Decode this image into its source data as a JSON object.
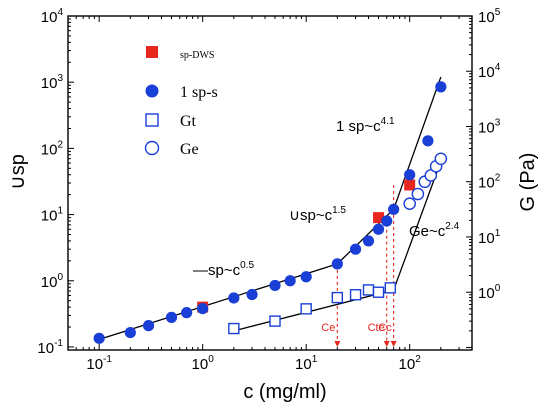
{
  "chart_data": {
    "type": "scatter",
    "xlabel": "c (mg/ml)",
    "ylabel_left": "∪sp",
    "ylabel_right": "G (Pa)",
    "x_scale": "log",
    "y_left_scale": "log",
    "y_right_scale": "log",
    "xlim": [
      0.05,
      400
    ],
    "ylim_left": [
      0.09,
      10000
    ],
    "ylim_right": [
      0.09,
      100000
    ],
    "x_ticks": [
      {
        "base": "10",
        "exp": "-1"
      },
      {
        "base": "10",
        "exp": "0"
      },
      {
        "base": "10",
        "exp": "1"
      },
      {
        "base": "10",
        "exp": "2"
      }
    ],
    "y_left_ticks": [
      {
        "base": "10",
        "exp": "-1"
      },
      {
        "base": "10",
        "exp": "0"
      },
      {
        "base": "10",
        "exp": "1"
      },
      {
        "base": "10",
        "exp": "2"
      },
      {
        "base": "10",
        "exp": "3"
      },
      {
        "base": "10",
        "exp": "4"
      }
    ],
    "y_right_ticks": [
      {
        "base": "10",
        "exp": "0"
      },
      {
        "base": "10",
        "exp": "1"
      },
      {
        "base": "10",
        "exp": "2"
      },
      {
        "base": "10",
        "exp": "3"
      },
      {
        "base": "10",
        "exp": "4"
      },
      {
        "base": "10",
        "exp": "5"
      }
    ],
    "series": [
      {
        "name": "sp-DWS",
        "marker": "filled-square",
        "color": "#e8281e",
        "axis": "left",
        "x": [
          1.0,
          50,
          100
        ],
        "y": [
          0.4,
          9.0,
          28
        ]
      },
      {
        "name": "1 sp-s",
        "marker": "filled-circle",
        "color": "#1a3fd6",
        "axis": "left",
        "x": [
          0.1,
          0.2,
          0.3,
          0.5,
          0.7,
          1,
          2,
          3,
          5,
          7,
          10,
          20,
          30,
          40,
          50,
          60,
          70,
          100,
          150,
          200
        ],
        "y": [
          0.135,
          0.165,
          0.21,
          0.28,
          0.33,
          0.38,
          0.55,
          0.62,
          0.85,
          1.0,
          1.15,
          1.8,
          3.0,
          4.0,
          6.0,
          8.0,
          12,
          40,
          130,
          850
        ]
      },
      {
        "name": "Gt",
        "marker": "open-square",
        "color": "#1a3fd6",
        "axis": "right",
        "x": [
          2,
          5,
          10,
          20,
          30,
          40,
          50,
          65
        ],
        "y": [
          0.22,
          0.3,
          0.5,
          0.8,
          0.9,
          1.1,
          1.0,
          1.2
        ]
      },
      {
        "name": "Ge",
        "marker": "open-circle",
        "color": "#1a3fd6",
        "axis": "right",
        "x": [
          100,
          120,
          140,
          160,
          180,
          200
        ],
        "y": [
          40,
          60,
          100,
          130,
          190,
          260
        ]
      }
    ],
    "annotations": [
      {
        "text": "—sp~c",
        "exp": "0.5"
      },
      {
        "text": "∪sp~c",
        "exp": "1.5"
      },
      {
        "text": "1 sp~c",
        "exp": "4.1"
      },
      {
        "text": "Ge~c",
        "exp": "2.4"
      }
    ],
    "critical_labels": [
      {
        "text": "Ce",
        "x": 20
      },
      {
        "text": "Cte",
        "x": 60
      },
      {
        "text": "Cc",
        "x": 70
      }
    ],
    "grid": false,
    "legend_position": "top-left",
    "colors": {
      "red": "#e8281e",
      "blue": "#1a3fd6",
      "dashed": "#e8281e"
    }
  }
}
